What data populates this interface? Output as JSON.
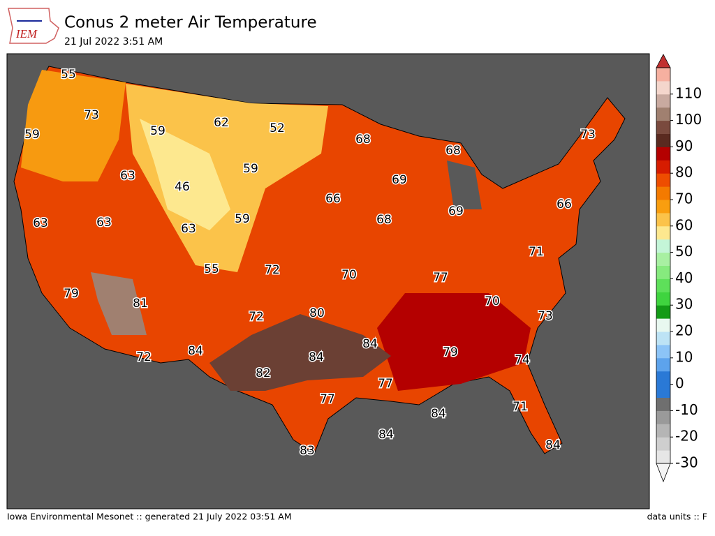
{
  "header": {
    "logo": "IEM",
    "title": "Conus 2 meter Air Temperature",
    "subtitle": "21 Jul 2022 3:51 AM"
  },
  "map": {
    "labels": [
      55,
      73,
      59,
      59,
      62,
      52,
      68,
      68,
      73,
      63,
      46,
      59,
      69,
      66,
      66,
      63,
      63,
      63,
      59,
      68,
      69,
      71,
      55,
      72,
      70,
      77,
      79,
      81,
      70,
      80,
      72,
      73,
      84,
      84,
      84,
      79,
      74,
      72,
      82,
      77,
      77,
      71,
      84,
      84,
      83,
      84
    ]
  },
  "colorbar": {
    "lim": [
      -30,
      120
    ],
    "ticks": [
      -30,
      -20,
      -10,
      0,
      10,
      20,
      30,
      40,
      50,
      60,
      70,
      80,
      90,
      100,
      110
    ],
    "colors": [
      "#e6e6e6",
      "#cfcfcf",
      "#b5b5b5",
      "#9a9a9a",
      "#6f6f6f",
      "#2a79d6",
      "#2a79d6",
      "#5da3ec",
      "#8cc4f7",
      "#bde3f5",
      "#e8f8f0",
      "#139b17",
      "#3fd43f",
      "#5ee05a",
      "#86ea7e",
      "#a8f0a2",
      "#c4f5d8",
      "#fde88f",
      "#fbc34a",
      "#f99e0f",
      "#f47a00",
      "#ee4d00",
      "#d61c00",
      "#b40000",
      "#5a2a20",
      "#7a4a3e",
      "#a08070",
      "#c9aaa0",
      "#f4d6cc",
      "#f6b0a0"
    ]
  },
  "footer": {
    "left": "Iowa Environmental Mesonet :: generated 21 July 2022 03:51 AM",
    "right": "data units :: F"
  }
}
